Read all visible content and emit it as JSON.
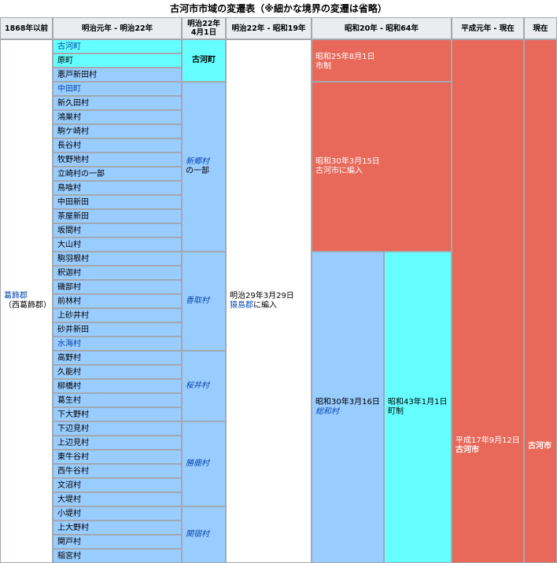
{
  "caption": "古河市市域の変遷表（※細かな境界の変遷は省略）",
  "headers": {
    "h1": "1868年以前",
    "h2": "明治元年 - 明治22年",
    "h3": "明治22年4月1日",
    "h4": "明治22年 - 昭和19年",
    "h5": "昭和20年 - 昭和64年",
    "h6": "平成元年 - 現在",
    "h7": "現在"
  },
  "district": {
    "name": "葛飾郡",
    "sub": "（西葛飾郡）"
  },
  "villages": [
    "古河町",
    "原町",
    "悪戸新田村",
    "中田町",
    "新久田村",
    "鴻巣村",
    "駒ケ崎村",
    "長谷村",
    "牧野地村",
    "立崎村の一部",
    "鳥喰村",
    "中田新田",
    "茶屋新田",
    "坂間村",
    "大山村",
    "駒羽根村",
    "釈迦村",
    "磯部村",
    "前林村",
    "上砂井村",
    "砂井新田",
    "水海村",
    "高野村",
    "久能村",
    "柳橋村",
    "葛生村",
    "下大野村",
    "下辺見村",
    "上辺見村",
    "東牛谷村",
    "西牛谷村",
    "文沼村",
    "大堤村",
    "小堤村",
    "上大野村",
    "関戸村",
    "稲宮村"
  ],
  "groups": {
    "koga_town": "古河町",
    "shingo_name": "新郷村",
    "shingo_note": "の一部",
    "katori": "香取村",
    "sakurai": "桜井村",
    "shokan": "勝鹿村",
    "sekiyado": "関宿村"
  },
  "sashima": {
    "line1": "明治29年3月29日",
    "link": "猿島郡",
    "rest": "に編入"
  },
  "s25": {
    "line1": "昭和25年8月1日",
    "line2": "市制"
  },
  "s30koga": {
    "line1": "昭和30年3月15日",
    "line2": "古河市に編入"
  },
  "sowa": {
    "line1": "昭和30年3月16日",
    "link": "総和村"
  },
  "s43": {
    "line1": "昭和43年1月1日",
    "line2": "町制"
  },
  "h17": {
    "line1": "平成17年9月12日",
    "line2": "古河市"
  },
  "current": "古河市",
  "colors": {
    "blue": "#99ccff",
    "cyan": "#66ffff",
    "red": "#e8695a",
    "header": "#eaecf0"
  }
}
